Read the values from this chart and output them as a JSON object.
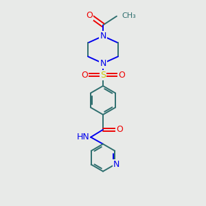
{
  "background_color": "#e8eae8",
  "bond_color": "#2d6e6e",
  "nitrogen_color": "#0000ee",
  "oxygen_color": "#ee0000",
  "sulfur_color": "#cccc00",
  "figsize": [
    3.0,
    3.0
  ],
  "dpi": 100,
  "xlim": [
    0,
    10
  ],
  "ylim": [
    0,
    15
  ]
}
